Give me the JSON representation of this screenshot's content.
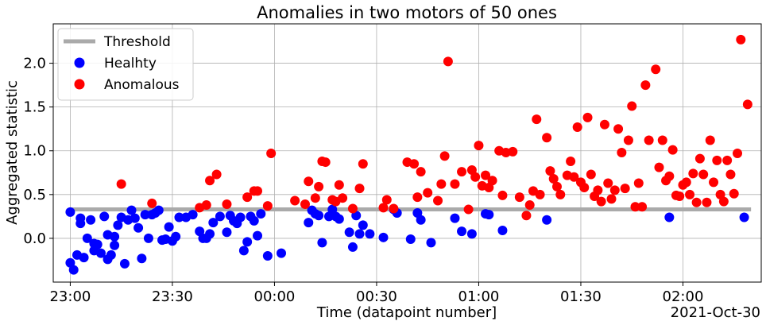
{
  "chart_data": {
    "type": "scatter",
    "title": "Anomalies in two motors of 50 ones",
    "xlabel": "Time (datapoint number]",
    "ylabel": "Aggregated statistic",
    "x_offset_label": "2021-Oct-30",
    "xlim": [
      "22:55",
      "02:23"
    ],
    "ylim": [
      -0.5,
      2.45
    ],
    "x_ticks": [
      "23:00",
      "23:30",
      "00:00",
      "00:30",
      "01:00",
      "01:30",
      "02:00"
    ],
    "y_ticks": [
      "0.0",
      "0.5",
      "1.0",
      "1.5",
      "2.0"
    ],
    "grid": true,
    "legend_position": "top-left",
    "threshold": {
      "name": "Threshold",
      "value": 0.33,
      "x_range": [
        "23:00",
        "02:20"
      ],
      "color": "#aaaaaa"
    },
    "series": [
      {
        "name": "Healhty",
        "color": "#0000ff",
        "points": [
          [
            "23:00",
            0.3
          ],
          [
            "23:00",
            -0.28
          ],
          [
            "23:01",
            -0.36
          ],
          [
            "23:02",
            -0.19
          ],
          [
            "23:03",
            0.17
          ],
          [
            "23:03",
            0.23
          ],
          [
            "23:04",
            -0.22
          ],
          [
            "23:05",
            0.0
          ],
          [
            "23:06",
            0.21
          ],
          [
            "23:07",
            -0.14
          ],
          [
            "23:07",
            -0.06
          ],
          [
            "23:08",
            -0.07
          ],
          [
            "23:09",
            -0.17
          ],
          [
            "23:10",
            0.25
          ],
          [
            "23:11",
            0.04
          ],
          [
            "23:11",
            -0.24
          ],
          [
            "23:12",
            -0.19
          ],
          [
            "23:13",
            0.02
          ],
          [
            "23:13",
            -0.08
          ],
          [
            "23:14",
            0.15
          ],
          [
            "23:15",
            0.24
          ],
          [
            "23:16",
            -0.29
          ],
          [
            "23:17",
            0.21
          ],
          [
            "23:18",
            0.32
          ],
          [
            "23:19",
            0.23
          ],
          [
            "23:20",
            0.12
          ],
          [
            "23:21",
            -0.23
          ],
          [
            "23:22",
            0.27
          ],
          [
            "23:23",
            0.0
          ],
          [
            "23:24",
            0.27
          ],
          [
            "23:25",
            0.29
          ],
          [
            "23:26",
            0.32
          ],
          [
            "23:27",
            -0.02
          ],
          [
            "23:28",
            -0.01
          ],
          [
            "23:29",
            0.13
          ],
          [
            "23:30",
            -0.03
          ],
          [
            "23:31",
            0.02
          ],
          [
            "23:32",
            0.24
          ],
          [
            "23:34",
            0.24
          ],
          [
            "23:36",
            0.27
          ],
          [
            "23:38",
            0.08
          ],
          [
            "23:39",
            0.0
          ],
          [
            "23:40",
            0.0
          ],
          [
            "23:41",
            0.05
          ],
          [
            "23:42",
            0.18
          ],
          [
            "23:44",
            0.25
          ],
          [
            "23:46",
            0.07
          ],
          [
            "23:47",
            0.26
          ],
          [
            "23:48",
            0.2
          ],
          [
            "23:49",
            0.17
          ],
          [
            "23:50",
            0.24
          ],
          [
            "23:51",
            -0.14
          ],
          [
            "23:52",
            -0.04
          ],
          [
            "23:53",
            0.25
          ],
          [
            "23:54",
            0.2
          ],
          [
            "23:55",
            0.03
          ],
          [
            "23:56",
            0.28
          ],
          [
            "23:58",
            -0.2
          ],
          [
            "00:02",
            -0.17
          ],
          [
            "00:10",
            0.18
          ],
          [
            "00:11",
            0.32
          ],
          [
            "00:12",
            0.28
          ],
          [
            "00:13",
            0.26
          ],
          [
            "00:14",
            -0.05
          ],
          [
            "00:16",
            0.25
          ],
          [
            "00:17",
            0.33
          ],
          [
            "00:18",
            0.25
          ],
          [
            "00:19",
            0.22
          ],
          [
            "00:22",
            0.07
          ],
          [
            "00:23",
            -0.1
          ],
          [
            "00:24",
            0.26
          ],
          [
            "00:25",
            0.05
          ],
          [
            "00:26",
            0.15
          ],
          [
            "00:28",
            0.05
          ],
          [
            "00:32",
            0.01
          ],
          [
            "00:35",
            0.33
          ],
          [
            "00:36",
            0.29
          ],
          [
            "00:40",
            -0.01
          ],
          [
            "00:42",
            0.29
          ],
          [
            "00:43",
            0.21
          ],
          [
            "00:46",
            -0.05
          ],
          [
            "00:53",
            0.23
          ],
          [
            "00:55",
            0.08
          ],
          [
            "00:58",
            0.05
          ],
          [
            "01:02",
            0.28
          ],
          [
            "01:03",
            0.27
          ],
          [
            "01:07",
            0.09
          ],
          [
            "01:20",
            0.21
          ],
          [
            "01:56",
            0.24
          ],
          [
            "02:18",
            0.24
          ]
        ]
      },
      {
        "name": "Anomalous",
        "color": "#ff0000",
        "points": [
          [
            "23:15",
            0.62
          ],
          [
            "23:24",
            0.4
          ],
          [
            "23:38",
            0.35
          ],
          [
            "23:40",
            0.38
          ],
          [
            "23:41",
            0.66
          ],
          [
            "23:43",
            0.73
          ],
          [
            "23:46",
            0.39
          ],
          [
            "23:52",
            0.47
          ],
          [
            "23:54",
            0.54
          ],
          [
            "23:55",
            0.54
          ],
          [
            "23:58",
            0.37
          ],
          [
            "23:59",
            0.97
          ],
          [
            "00:06",
            0.43
          ],
          [
            "00:09",
            0.39
          ],
          [
            "00:10",
            0.65
          ],
          [
            "00:12",
            0.46
          ],
          [
            "00:13",
            0.59
          ],
          [
            "00:14",
            0.88
          ],
          [
            "00:15",
            0.87
          ],
          [
            "00:17",
            0.44
          ],
          [
            "00:18",
            0.42
          ],
          [
            "00:19",
            0.61
          ],
          [
            "00:20",
            0.46
          ],
          [
            "00:23",
            0.34
          ],
          [
            "00:25",
            0.57
          ],
          [
            "00:26",
            0.85
          ],
          [
            "00:32",
            0.35
          ],
          [
            "00:33",
            0.44
          ],
          [
            "00:35",
            0.34
          ],
          [
            "00:39",
            0.87
          ],
          [
            "00:41",
            0.85
          ],
          [
            "00:42",
            0.47
          ],
          [
            "00:43",
            0.76
          ],
          [
            "00:45",
            0.52
          ],
          [
            "00:48",
            0.43
          ],
          [
            "00:49",
            0.62
          ],
          [
            "00:50",
            0.94
          ],
          [
            "00:51",
            2.02
          ],
          [
            "00:53",
            0.62
          ],
          [
            "00:55",
            0.76
          ],
          [
            "00:57",
            0.33
          ],
          [
            "00:58",
            0.78
          ],
          [
            "00:59",
            0.7
          ],
          [
            "01:00",
            1.06
          ],
          [
            "01:01",
            0.6
          ],
          [
            "01:02",
            0.72
          ],
          [
            "01:03",
            0.58
          ],
          [
            "01:04",
            0.66
          ],
          [
            "01:06",
            1.0
          ],
          [
            "01:07",
            0.49
          ],
          [
            "01:08",
            0.98
          ],
          [
            "01:10",
            0.99
          ],
          [
            "01:12",
            0.47
          ],
          [
            "01:14",
            0.26
          ],
          [
            "01:15",
            0.38
          ],
          [
            "01:16",
            0.54
          ],
          [
            "01:17",
            1.36
          ],
          [
            "01:18",
            0.5
          ],
          [
            "01:20",
            1.15
          ],
          [
            "01:21",
            0.77
          ],
          [
            "01:22",
            0.68
          ],
          [
            "01:23",
            0.59
          ],
          [
            "01:24",
            0.5
          ],
          [
            "01:26",
            0.72
          ],
          [
            "01:27",
            0.88
          ],
          [
            "01:28",
            0.7
          ],
          [
            "01:29",
            1.27
          ],
          [
            "01:30",
            0.64
          ],
          [
            "01:31",
            0.58
          ],
          [
            "01:32",
            1.38
          ],
          [
            "01:33",
            0.73
          ],
          [
            "01:34",
            0.48
          ],
          [
            "01:35",
            0.55
          ],
          [
            "01:36",
            0.42
          ],
          [
            "01:37",
            1.3
          ],
          [
            "01:38",
            0.63
          ],
          [
            "01:39",
            0.45
          ],
          [
            "01:40",
            0.55
          ],
          [
            "01:41",
            1.25
          ],
          [
            "01:42",
            0.98
          ],
          [
            "01:43",
            0.57
          ],
          [
            "01:44",
            1.12
          ],
          [
            "01:45",
            1.51
          ],
          [
            "01:46",
            0.36
          ],
          [
            "01:47",
            0.63
          ],
          [
            "01:48",
            0.36
          ],
          [
            "01:49",
            1.75
          ],
          [
            "01:50",
            1.12
          ],
          [
            "01:52",
            1.93
          ],
          [
            "01:53",
            0.81
          ],
          [
            "01:54",
            1.12
          ],
          [
            "01:55",
            0.66
          ],
          [
            "01:56",
            0.71
          ],
          [
            "01:57",
            1.01
          ],
          [
            "01:58",
            0.49
          ],
          [
            "01:59",
            0.48
          ],
          [
            "02:00",
            0.61
          ],
          [
            "02:01",
            0.64
          ],
          [
            "02:02",
            0.5
          ],
          [
            "02:03",
            0.74
          ],
          [
            "02:04",
            0.41
          ],
          [
            "02:05",
            0.91
          ],
          [
            "02:06",
            0.73
          ],
          [
            "02:07",
            0.41
          ],
          [
            "02:08",
            1.12
          ],
          [
            "02:09",
            0.64
          ],
          [
            "02:10",
            0.89
          ],
          [
            "02:11",
            0.5
          ],
          [
            "02:12",
            0.42
          ],
          [
            "02:13",
            0.89
          ],
          [
            "02:14",
            0.73
          ],
          [
            "02:15",
            0.51
          ],
          [
            "02:16",
            0.97
          ],
          [
            "02:17",
            2.27
          ],
          [
            "02:19",
            1.53
          ]
        ]
      }
    ]
  }
}
